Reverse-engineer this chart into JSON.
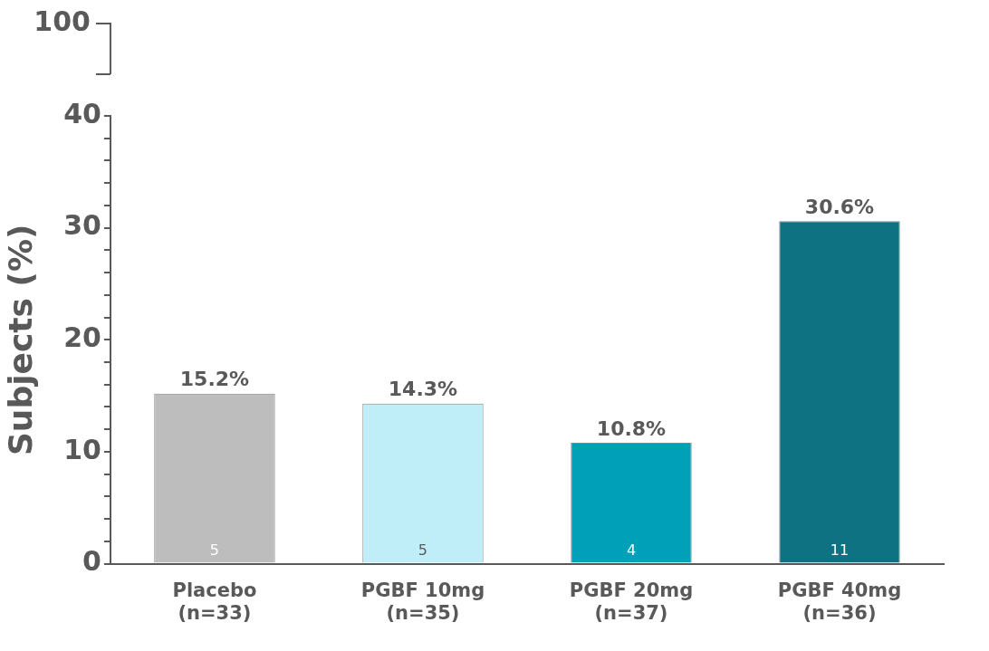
{
  "chart_data": {
    "type": "bar",
    "ylabel": "Subjects (%)",
    "categories": [
      "Placebo\n(n=33)",
      "PGBF 10mg\n(n=35)",
      "PGBF 20mg\n(n=37)",
      "PGBF 40mg\n(n=36)"
    ],
    "values": [
      15.2,
      14.3,
      10.8,
      30.6
    ],
    "colors": [
      "#bdbdbd",
      "#c0eef8",
      "#00a0b8",
      "#0e7283"
    ],
    "value_labels": [
      "15.2%",
      "14.3%",
      "10.8%",
      "30.6%"
    ],
    "ylim": [
      0,
      40
    ],
    "yticks": [
      0,
      {
        "value": 2,
        "label": null
      },
      {
        "value": 4,
        "label": null
      },
      {
        "value": 6,
        "label": null
      },
      {
        "value": 8,
        "label": null
      },
      10,
      {
        "value": 12,
        "label": null
      },
      {
        "value": 14,
        "label": null
      },
      {
        "value": 16,
        "label": null
      },
      {
        "value": 18,
        "label": null
      },
      20,
      {
        "value": 22,
        "label": null
      },
      {
        "value": 24,
        "label": null
      },
      {
        "value": 26,
        "label": null
      },
      {
        "value": 28,
        "label": null
      },
      30,
      {
        "value": 32,
        "label": null
      },
      {
        "value": 34,
        "label": null
      },
      {
        "value": 36,
        "label": null
      },
      {
        "value": 38,
        "label": null
      },
      40
    ],
    "annotations": [
      "100",
      "5",
      "5",
      "4",
      "11"
    ],
    "grid": false,
    "legend": false
  }
}
